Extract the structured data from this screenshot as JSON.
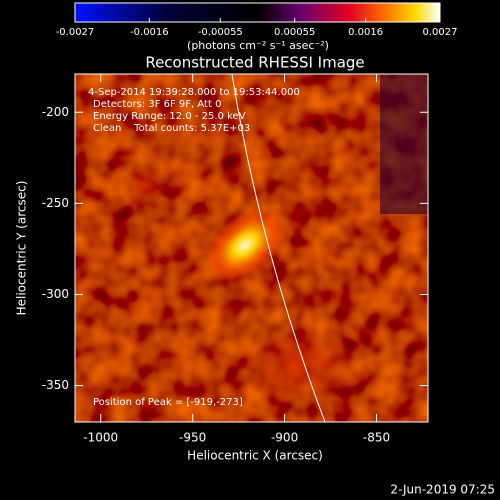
{
  "chart_data": {
    "type": "heatmap",
    "title": "Reconstructed RHESSI Image",
    "colorbar": {
      "label": "(photons cm⁻² s⁻¹ asec⁻²)",
      "lim": [
        -0.0027,
        0.0027
      ],
      "ticks": [
        -0.0027,
        -0.0016,
        -0.00055,
        0.00055,
        0.0016,
        0.0027
      ]
    },
    "x_label": "Heliocentric X (arcsec)",
    "y_label": "Heliocentric Y (arcsec)",
    "xlim": [
      -1014,
      -822
    ],
    "xticks": [
      -1000,
      -950,
      -900,
      -850
    ],
    "ylim": [
      -370,
      -179
    ],
    "yticks": [
      -200,
      -250,
      -300,
      -350
    ],
    "annotations": [
      "4-Sep-2014 19:39:28.000 to 19:53:44.000",
      "Detectors: 3F 6F 9F, Att 0",
      "Energy Range: 12.0 - 25.0 keV",
      "Clean    Total counts: 5.37E+03",
      "Position of Peak = [-919,-273]"
    ],
    "footer": "2-Jun-2019 07:25"
  }
}
